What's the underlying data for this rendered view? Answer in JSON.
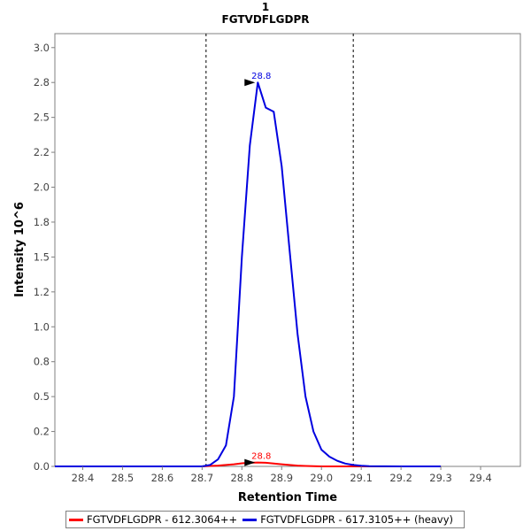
{
  "chart_data": {
    "type": "line",
    "title": "1",
    "subtitle": "FGTVDFLGDPR",
    "xlabel": "Retention Time",
    "ylabel": "Intensity 10^6",
    "xlim": [
      28.33,
      29.5
    ],
    "ylim": [
      0.0,
      3.1
    ],
    "xticks": [
      "28.4",
      "28.5",
      "28.6",
      "28.7",
      "28.8",
      "28.9",
      "29.0",
      "29.1",
      "29.2",
      "29.3",
      "29.4"
    ],
    "yticks": [
      "0.0",
      "0.2",
      "0.5",
      "0.8",
      "1.0",
      "1.2",
      "1.5",
      "1.8",
      "2.0",
      "2.2",
      "2.5",
      "2.8",
      "3.0"
    ],
    "ytick_values": [
      0.0,
      0.25,
      0.5,
      0.75,
      1.0,
      1.25,
      1.5,
      1.75,
      2.0,
      2.25,
      2.5,
      2.75,
      3.0
    ],
    "grid": false,
    "legend_position": "bottom",
    "integration_boundaries": [
      28.71,
      29.08
    ],
    "series": [
      {
        "name": "FGTVDFLGDPR - 612.3064++",
        "color": "#ff0000",
        "x": [
          28.33,
          28.6,
          28.7,
          28.72,
          28.74,
          28.76,
          28.78,
          28.8,
          28.82,
          28.84,
          28.86,
          28.88,
          28.9,
          28.92,
          28.94,
          28.96,
          29.0,
          29.05,
          29.1,
          29.2,
          29.3
        ],
        "y": [
          0.0,
          0.0,
          0.0,
          0.003,
          0.006,
          0.01,
          0.015,
          0.022,
          0.026,
          0.028,
          0.026,
          0.02,
          0.015,
          0.01,
          0.006,
          0.003,
          0.0,
          0.0,
          0.0,
          0.0,
          0.0
        ],
        "peak_label": "28.8",
        "peak_x": 28.84,
        "peak_y": 0.028
      },
      {
        "name": "FGTVDFLGDPR - 617.3105++ (heavy)",
        "color": "#0000e0",
        "x": [
          28.33,
          28.6,
          28.7,
          28.72,
          28.74,
          28.76,
          28.78,
          28.8,
          28.82,
          28.84,
          28.86,
          28.88,
          28.9,
          28.92,
          28.94,
          28.96,
          28.98,
          29.0,
          29.02,
          29.04,
          29.06,
          29.08,
          29.1,
          29.12,
          29.2,
          29.3
        ],
        "y": [
          0.0,
          0.0,
          0.0,
          0.01,
          0.05,
          0.15,
          0.5,
          1.5,
          2.3,
          2.75,
          2.57,
          2.54,
          2.15,
          1.55,
          0.95,
          0.5,
          0.25,
          0.12,
          0.07,
          0.04,
          0.02,
          0.01,
          0.005,
          0.002,
          0.0,
          0.0
        ],
        "peak_label": "28.8",
        "peak_x": 28.84,
        "peak_y": 2.75
      }
    ]
  }
}
